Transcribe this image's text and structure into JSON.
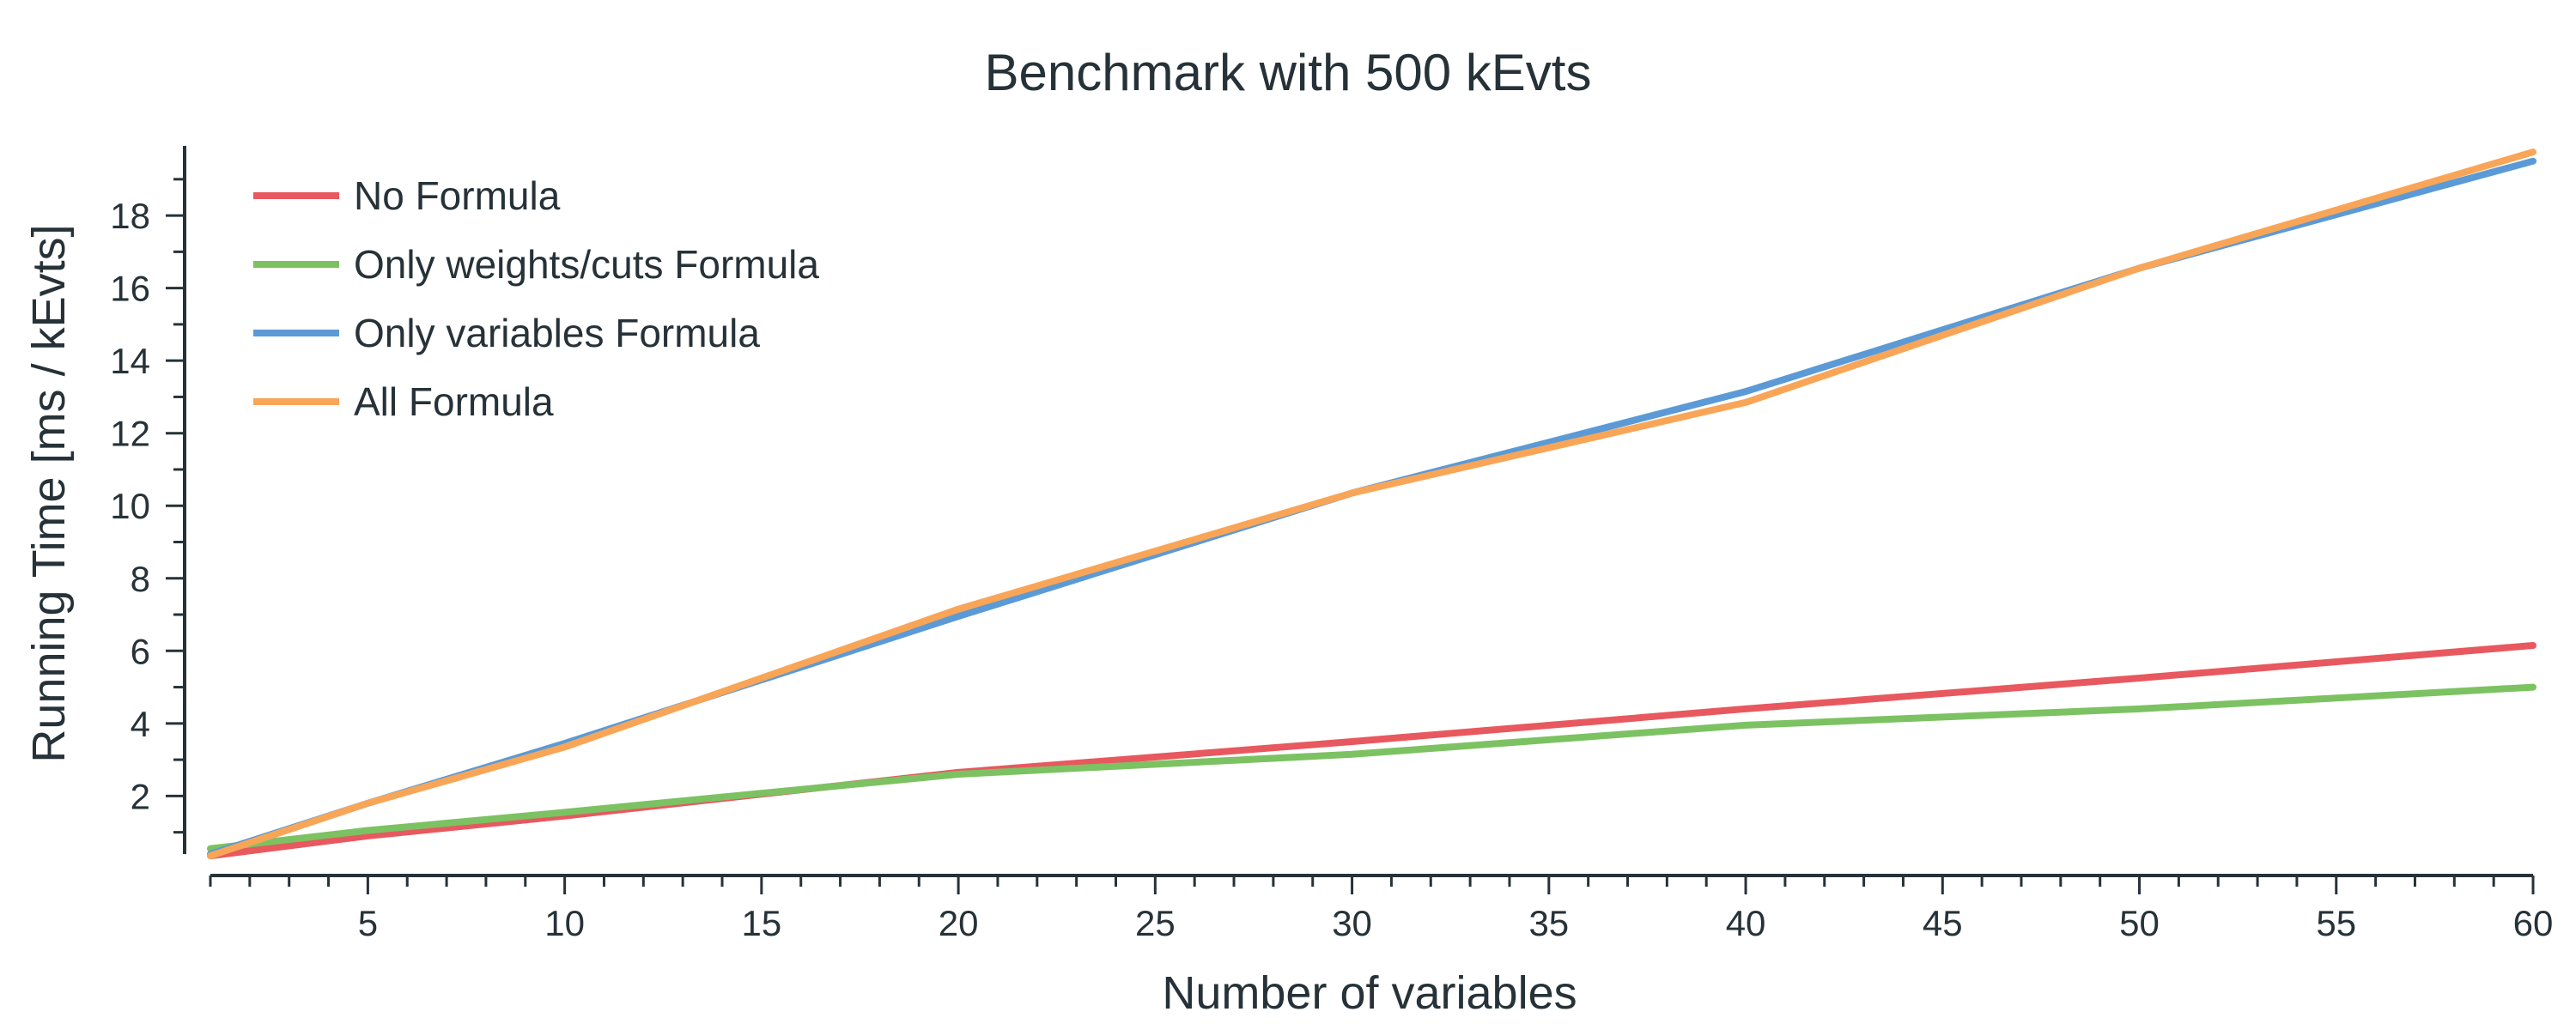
{
  "chart_data": {
    "type": "line",
    "title": "Benchmark with 500 kEvts",
    "xlabel": "Number of variables",
    "ylabel": "Running Time [ms / kEvts]",
    "xlim": [
      1,
      60
    ],
    "ylim": [
      0.4,
      19.8
    ],
    "xticks": [
      5,
      10,
      15,
      20,
      25,
      30,
      35,
      40,
      45,
      50,
      55,
      60
    ],
    "yticks": [
      2,
      4,
      6,
      8,
      10,
      12,
      14,
      16,
      18
    ],
    "grid": false,
    "legend_position": "top-left",
    "x": [
      1,
      5,
      10,
      20,
      30,
      40,
      50,
      60
    ],
    "series": [
      {
        "name": "No Formula",
        "color": "#e8585f",
        "values": [
          0.35,
          0.9,
          1.45,
          2.65,
          3.5,
          4.4,
          5.25,
          6.15
        ]
      },
      {
        "name": "Only weights/cuts Formula",
        "color": "#7cc262",
        "values": [
          0.55,
          1.05,
          1.55,
          2.6,
          3.15,
          3.95,
          4.4,
          5.0
        ]
      },
      {
        "name": "Only variables Formula",
        "color": "#5b9ad6",
        "values": [
          0.4,
          1.8,
          3.45,
          6.95,
          10.35,
          13.15,
          16.55,
          19.5
        ]
      },
      {
        "name": "All Formula",
        "color": "#f9a557",
        "values": [
          0.35,
          1.8,
          3.35,
          7.15,
          10.35,
          12.85,
          16.55,
          19.75
        ]
      }
    ]
  }
}
